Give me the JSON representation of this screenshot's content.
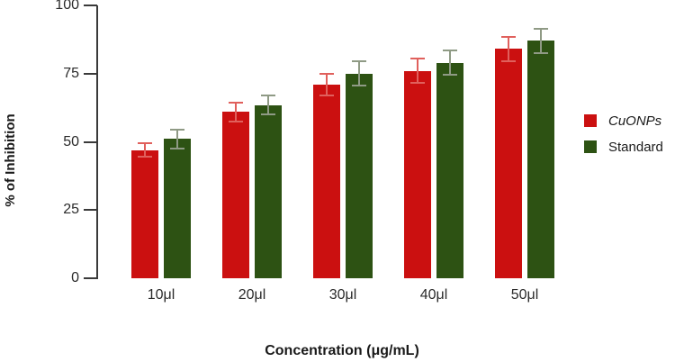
{
  "chart_data": {
    "type": "bar",
    "title": "",
    "xlabel": "Concentration (μg/mL)",
    "ylabel": "% of Inhibition",
    "categories": [
      "10μl",
      "20μl",
      "30μl",
      "40μl",
      "50μl"
    ],
    "series": [
      {
        "name": "CuONPs",
        "color": "#cb1010",
        "error_color": "#e0605c",
        "italic_label": true,
        "values": [
          47,
          61,
          71,
          76,
          84
        ],
        "errors": [
          2.5,
          3.5,
          4,
          4.5,
          4.5
        ]
      },
      {
        "name": "Standard",
        "color": "#2d5213",
        "error_color": "#8f9a85",
        "italic_label": false,
        "values": [
          51,
          63.5,
          75,
          79,
          87
        ],
        "errors": [
          3.5,
          3.5,
          4.5,
          4.5,
          4.5
        ]
      }
    ],
    "ylim": [
      0,
      100
    ],
    "yticks": [
      0,
      25,
      50,
      75,
      100
    ],
    "grid": false,
    "error_bars": true,
    "legend_position": "right",
    "axis_color": "#3a3a3a"
  }
}
